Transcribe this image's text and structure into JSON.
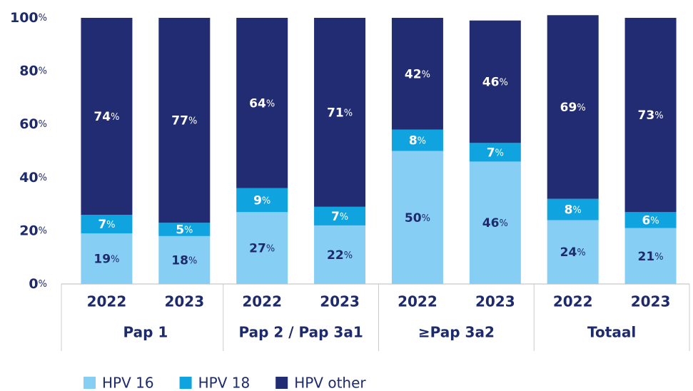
{
  "chart_data": {
    "type": "stacked-bar",
    "categories": [
      "2022",
      "2023",
      "2022",
      "2023",
      "2022",
      "2023",
      "2022",
      "2023"
    ],
    "groups": [
      "Pap 1",
      "Pap 2 / Pap 3a1",
      "≥Pap 3a2",
      "Totaal"
    ],
    "series": [
      {
        "name": "HPV 16",
        "color": "#87cef4",
        "label_color": "#1d2a6b",
        "values": [
          19,
          18,
          27,
          22,
          50,
          46,
          24,
          21
        ],
        "value_labels": [
          "19%",
          "18%",
          "27%",
          "22%",
          "50%",
          "46%",
          "24%",
          "21%"
        ]
      },
      {
        "name": "HPV 18",
        "color": "#0fa3e0",
        "label_color": "#ffffff",
        "values": [
          7,
          5,
          9,
          7,
          8,
          7,
          8,
          6
        ],
        "value_labels": [
          "7%",
          "5%",
          "9%",
          "7%",
          "8%",
          "7%",
          "8%",
          "6%"
        ]
      },
      {
        "name": "HPV other",
        "color": "#222c72",
        "label_color": "#ffffff",
        "values": [
          74,
          77,
          64,
          71,
          42,
          46,
          69,
          73
        ],
        "value_labels": [
          "74%",
          "77%",
          "64%",
          "71%",
          "42%",
          "46%",
          "69%",
          "73%"
        ]
      }
    ],
    "ylim": [
      0,
      100
    ],
    "yticks": [
      {
        "value": 0,
        "label": "0%"
      },
      {
        "value": 20,
        "label": "20%"
      },
      {
        "value": 40,
        "label": "40%"
      },
      {
        "value": 60,
        "label": "60%"
      },
      {
        "value": 80,
        "label": "80%"
      },
      {
        "value": 100,
        "label": "100%"
      }
    ],
    "grid": false,
    "legend": "bottom-left"
  }
}
